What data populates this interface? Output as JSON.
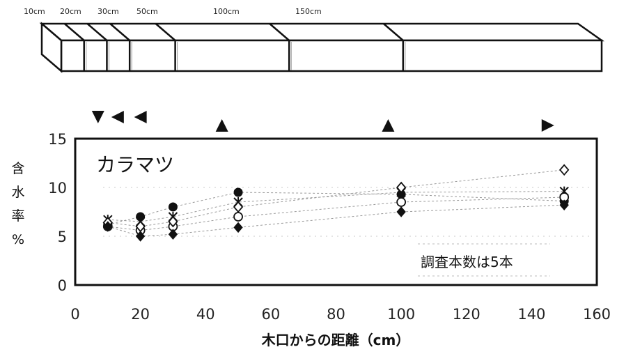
{
  "chart_data": {
    "type": "scatter",
    "title": "",
    "species_label": "カラマツ",
    "note": "調査本数は5本",
    "xlabel": "木口からの距離（cm）",
    "ylabel_chars": [
      "含",
      "水",
      "率",
      "%"
    ],
    "xlim": [
      0,
      160
    ],
    "ylim": [
      0,
      15
    ],
    "x_ticks": [
      "0",
      "20",
      "40",
      "60",
      "80",
      "100",
      "120",
      "140",
      "160"
    ],
    "y_ticks": [
      "0",
      "5",
      "10",
      "15"
    ],
    "x": [
      10,
      20,
      30,
      50,
      100,
      150
    ],
    "series": [
      {
        "marker": "filled-circle",
        "values": [
          6.2,
          7.0,
          8.0,
          9.5,
          9.3,
          8.6
        ]
      },
      {
        "marker": "x-cross",
        "values": [
          6.7,
          6.5,
          7.0,
          8.5,
          9.5,
          9.6
        ]
      },
      {
        "marker": "open-circle",
        "values": [
          6.0,
          5.6,
          6.0,
          7.0,
          8.5,
          9.0
        ]
      },
      {
        "marker": "open-diamond",
        "values": [
          6.4,
          6.0,
          6.5,
          8.0,
          10.0,
          11.8
        ]
      },
      {
        "marker": "filled-diamond",
        "values": [
          6.0,
          5.0,
          5.2,
          5.9,
          7.5,
          8.2
        ]
      }
    ],
    "arrows": [
      {
        "x": 7,
        "direction": "down"
      },
      {
        "x": 13,
        "direction": "left"
      },
      {
        "x": 20,
        "direction": "left"
      },
      {
        "x": 45,
        "direction": "up"
      },
      {
        "x": 96,
        "direction": "up"
      },
      {
        "x": 145,
        "direction": "right"
      }
    ]
  },
  "specimen": {
    "cut_labels": [
      "10cm",
      "20cm",
      "30cm",
      "50cm",
      "100cm",
      "150cm"
    ],
    "cut_x_cm": [
      10,
      20,
      30,
      50,
      100,
      150
    ]
  }
}
